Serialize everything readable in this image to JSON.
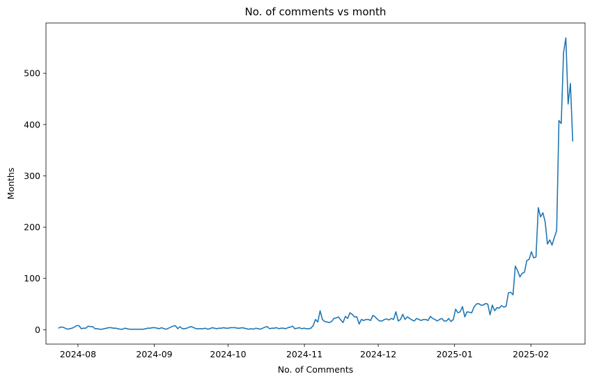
{
  "chart_data": {
    "type": "line",
    "title": "No. of comments vs month",
    "xlabel": "No. of Comments",
    "ylabel": "Months",
    "x_start": "2024-07-24",
    "x_end": "2025-02-18",
    "xlim": [
      "2024-07-19",
      "2025-02-23"
    ],
    "ylim": [
      -28,
      598
    ],
    "xticks": [
      "2024-08",
      "2024-09",
      "2024-10",
      "2024-11",
      "2024-12",
      "2025-01",
      "2025-02"
    ],
    "yticks": [
      0,
      100,
      200,
      300,
      400,
      500
    ],
    "grid": false,
    "color": "#1f77b4",
    "series": [
      {
        "name": "comments",
        "values": [
          3,
          5,
          5,
          3,
          1,
          2,
          3,
          5,
          8,
          8,
          2,
          3,
          3,
          7,
          6,
          6,
          2,
          2,
          1,
          1,
          2,
          3,
          4,
          4,
          3,
          3,
          2,
          1,
          1,
          3,
          2,
          1,
          1,
          1,
          1,
          1,
          1,
          1,
          2,
          3,
          3,
          4,
          4,
          3,
          2,
          4,
          2,
          1,
          3,
          5,
          7,
          8,
          2,
          6,
          2,
          2,
          3,
          5,
          6,
          4,
          2,
          2,
          2,
          2,
          3,
          1,
          2,
          4,
          3,
          2,
          3,
          3,
          4,
          3,
          3,
          4,
          4,
          4,
          3,
          3,
          4,
          3,
          2,
          1,
          2,
          1,
          3,
          2,
          1,
          3,
          5,
          6,
          2,
          3,
          3,
          4,
          2,
          3,
          3,
          2,
          4,
          5,
          7,
          2,
          3,
          4,
          2,
          3,
          2,
          2,
          3,
          8,
          20,
          15,
          37,
          20,
          16,
          15,
          14,
          16,
          22,
          23,
          25,
          19,
          14,
          26,
          22,
          33,
          30,
          25,
          25,
          11,
          20,
          18,
          20,
          20,
          18,
          28,
          25,
          20,
          17,
          17,
          20,
          21,
          19,
          22,
          20,
          35,
          17,
          20,
          30,
          20,
          25,
          22,
          19,
          17,
          22,
          20,
          18,
          20,
          20,
          18,
          26,
          22,
          20,
          17,
          20,
          22,
          17,
          17,
          22,
          16,
          20,
          40,
          33,
          35,
          45,
          25,
          35,
          34,
          33,
          44,
          50,
          51,
          48,
          48,
          51,
          50,
          29,
          48,
          37,
          43,
          42,
          47,
          44,
          46,
          72,
          73,
          68,
          124,
          115,
          103,
          110,
          112,
          135,
          137,
          152,
          140,
          142,
          238,
          220,
          228,
          210,
          167,
          175,
          165,
          180,
          193,
          408,
          402,
          540,
          569,
          440,
          480,
          367
        ]
      }
    ]
  }
}
